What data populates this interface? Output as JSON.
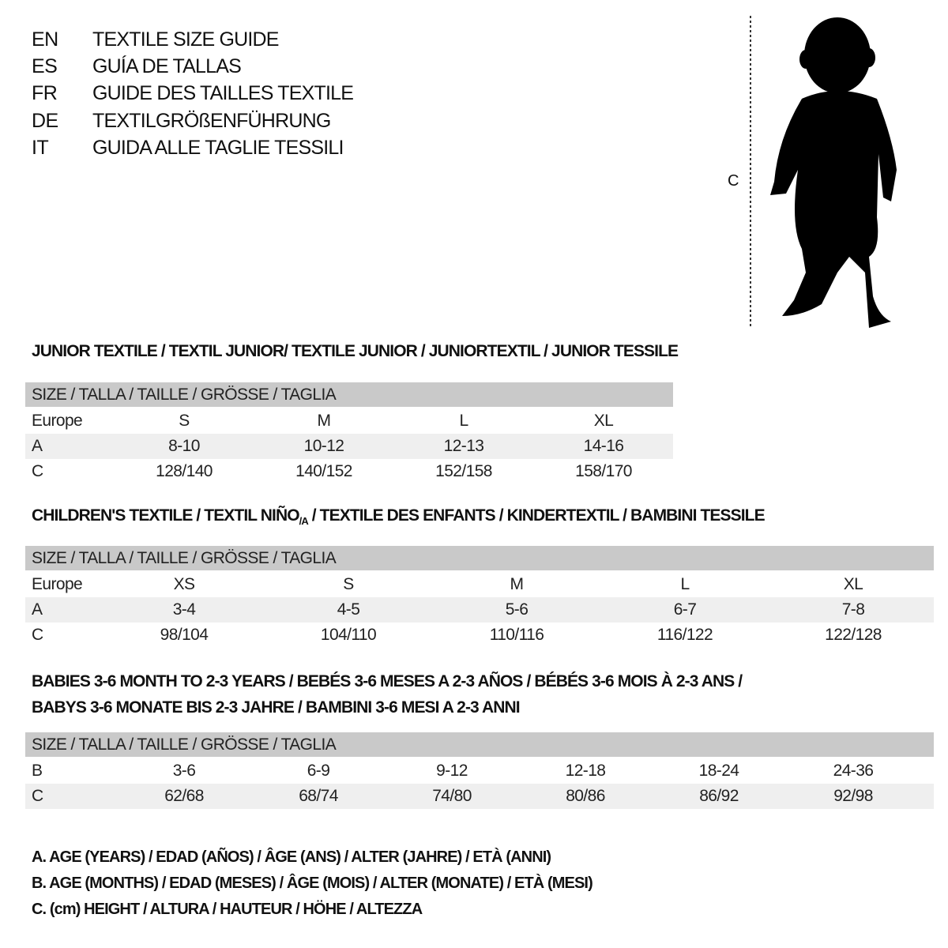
{
  "languages": [
    {
      "code": "EN",
      "text": "TEXTILE SIZE GUIDE"
    },
    {
      "code": "ES",
      "text": "GUÍA DE TALLAS"
    },
    {
      "code": "FR",
      "text": "GUIDE DES TAILLES TEXTILE"
    },
    {
      "code": "DE",
      "text": "TEXTILGRÖßENFÜHRUNG"
    },
    {
      "code": "IT",
      "text": "GUIDA ALLE TAGLIE TESSILI"
    }
  ],
  "figure": {
    "measure_label": "C"
  },
  "sections": [
    {
      "title": "JUNIOR TEXTILE / TEXTIL JUNIOR/ TEXTILE JUNIOR / JUNIORTEXTIL / JUNIOR TESSILE",
      "header": "SIZE / TALLA / TAILLE / GRÖSSE / TAGLIA",
      "rows": [
        {
          "label": "Europe",
          "values": [
            "S",
            "M",
            "L",
            "XL"
          ]
        },
        {
          "label": "A",
          "values": [
            "8-10",
            "10-12",
            "12-13",
            "14-16"
          ]
        },
        {
          "label": "C",
          "values": [
            "128/140",
            "140/152",
            "152/158",
            "158/170"
          ]
        }
      ]
    },
    {
      "title": "CHILDREN'S TEXTILE / TEXTIL NIÑO",
      "title_sub": "/A",
      "title_rest": " / TEXTILE DES ENFANTS / KINDERTEXTIL / BAMBINI TESSILE",
      "header": "SIZE / TALLA / TAILLE / GRÖSSE / TAGLIA",
      "rows": [
        {
          "label": "Europe",
          "values": [
            "XS",
            "S",
            "M",
            "L",
            "XL"
          ]
        },
        {
          "label": "A",
          "values": [
            "3-4",
            "4-5",
            "5-6",
            "6-7",
            "7-8"
          ]
        },
        {
          "label": "C",
          "values": [
            "98/104",
            "104/110",
            "110/116",
            "116/122",
            "122/128"
          ]
        }
      ]
    },
    {
      "title": "BABIES 3-6 MONTH TO 2-3 YEARS / BEBÉS 3-6 MESES A 2-3 AÑOS / BÉBÉS 3-6 MOIS À 2-3 ANS /",
      "title2": "BABYS 3-6 MONATE BIS 2-3 JAHRE / BAMBINI 3-6 MESI A 2-3 ANNI",
      "header": "SIZE / TALLA / TAILLE / GRÖSSE / TAGLIA",
      "rows": [
        {
          "label": "B",
          "values": [
            "3-6",
            "6-9",
            "9-12",
            "12-18",
            "18-24",
            "24-36"
          ]
        },
        {
          "label": "C",
          "values": [
            "62/68",
            "68/74",
            "74/80",
            "80/86",
            "86/92",
            "92/98"
          ]
        }
      ]
    }
  ],
  "legend": [
    "A. AGE (YEARS) / EDAD (AÑOS) / ÂGE (ANS) / ALTER (JAHRE) / ETÀ (ANNI)",
    "B. AGE (MONTHS) / EDAD (MESES) / ÂGE (MOIS) / ALTER (MONATE) / ETÀ (MESI)",
    "C. (cm) HEIGHT / ALTURA / HAUTEUR / HÖHE / ALTEZZA"
  ]
}
